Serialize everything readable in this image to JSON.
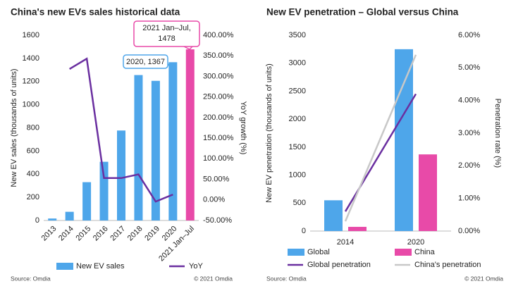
{
  "chart_data": [
    {
      "type": "bar",
      "title": "China's new EVs sales historical data",
      "categories": [
        "2013",
        "2014",
        "2015",
        "2016",
        "2017",
        "2018",
        "2019",
        "2020",
        "2021 Jan–Jul"
      ],
      "series": [
        {
          "name": "New EV sales",
          "colors": [
            "#4ea6ea",
            "#4ea6ea",
            "#4ea6ea",
            "#4ea6ea",
            "#4ea6ea",
            "#4ea6ea",
            "#4ea6ea",
            "#4ea6ea",
            "#e84aa8"
          ],
          "values": [
            17,
            75,
            331,
            507,
            777,
            1256,
            1206,
            1367,
            1478
          ]
        },
        {
          "name": "YoY",
          "type": "line",
          "axis": "y2",
          "color": "#6a2fa0",
          "values": [
            null,
            318,
            343,
            53,
            53,
            62,
            -4,
            13,
            null
          ]
        }
      ],
      "ylim": [
        0,
        1600
      ],
      "yticks": [
        0,
        200,
        400,
        600,
        800,
        1000,
        1200,
        1400,
        1600
      ],
      "y2lim": [
        -50,
        400
      ],
      "y2ticks": [
        {
          "value": -50,
          "label": "-50.00%"
        },
        {
          "value": 0,
          "label": "0.00%"
        },
        {
          "value": 50,
          "label": "50.00%"
        },
        {
          "value": 100,
          "label": "100.00%"
        },
        {
          "value": 150,
          "label": "150.00%"
        },
        {
          "value": 200,
          "label": "200.00%"
        },
        {
          "value": 250,
          "label": "250.00%"
        },
        {
          "value": 300,
          "label": "300.00%"
        },
        {
          "value": 350,
          "label": "350.00%"
        },
        {
          "value": 400,
          "label": "400.00%"
        }
      ],
      "ylabel": "New EV sales (thousands of units)",
      "y2label": "YoY growth (%)",
      "annotations": [
        {
          "lines": [
            "2021 Jan–Jul,",
            "1478"
          ],
          "color": "#e84aa8"
        },
        {
          "lines": [
            "2020, 1367"
          ],
          "color": "#4ea6ea"
        }
      ],
      "source": "Source: Omdia",
      "copyright": "© 2021 Omdia"
    },
    {
      "type": "bar",
      "title": "New EV penetration – Global versus China",
      "categories": [
        "2014",
        "2020"
      ],
      "series": [
        {
          "name": "Global",
          "color": "#4ea6ea",
          "values": [
            550,
            3250
          ]
        },
        {
          "name": "China",
          "color": "#e84aa8",
          "values": [
            75,
            1370
          ]
        },
        {
          "name": "Global penetration",
          "type": "line",
          "axis": "y2",
          "color": "#6a2fa0",
          "values": [
            0.6,
            4.2
          ]
        },
        {
          "name": "China's penetration",
          "type": "line",
          "axis": "y2",
          "color": "#c8c8c8",
          "values": [
            0.3,
            5.4
          ]
        }
      ],
      "ylim": [
        0,
        3500
      ],
      "yticks": [
        0,
        500,
        1000,
        1500,
        2000,
        2500,
        3000,
        3500
      ],
      "y2lim": [
        0,
        6
      ],
      "y2ticks": [
        {
          "value": 0,
          "label": "0.00%"
        },
        {
          "value": 1,
          "label": "1.00%"
        },
        {
          "value": 2,
          "label": "2.00%"
        },
        {
          "value": 3,
          "label": "3.00%"
        },
        {
          "value": 4,
          "label": "4.00%"
        },
        {
          "value": 5,
          "label": "5.00%"
        },
        {
          "value": 6,
          "label": "6.00%"
        }
      ],
      "ylabel": "New EV penetration (thousands of units)",
      "y2label": "Penetration rate (%)",
      "source": "Source: Omdia",
      "copyright": "© 2021 Omdia"
    }
  ]
}
